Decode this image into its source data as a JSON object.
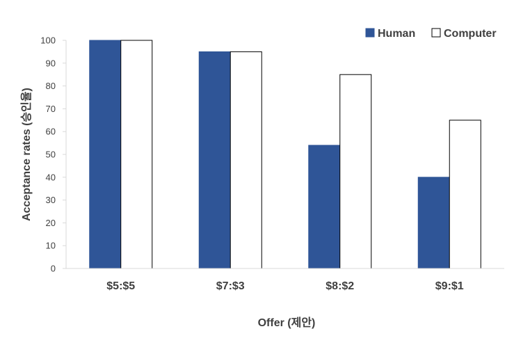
{
  "chart_data": {
    "type": "bar",
    "categories": [
      "$5:$5",
      "$7:$3",
      "$8:$2",
      "$9:$1"
    ],
    "series": [
      {
        "name": "Human",
        "values": [
          100,
          95,
          54,
          40
        ],
        "color": "#2f5597",
        "stroke": "#2f5597"
      },
      {
        "name": "Computer",
        "values": [
          100,
          95,
          85,
          65
        ],
        "color": "#ffffff",
        "stroke": "#000000"
      }
    ],
    "title": "",
    "xlabel": "Offer (제안)",
    "ylabel": "Acceptance rates (승인율)",
    "ylim": [
      0,
      100
    ],
    "yticks": [
      0,
      10,
      20,
      30,
      40,
      50,
      60,
      70,
      80,
      90,
      100
    ],
    "grid": false,
    "legend_position": "top-right"
  }
}
